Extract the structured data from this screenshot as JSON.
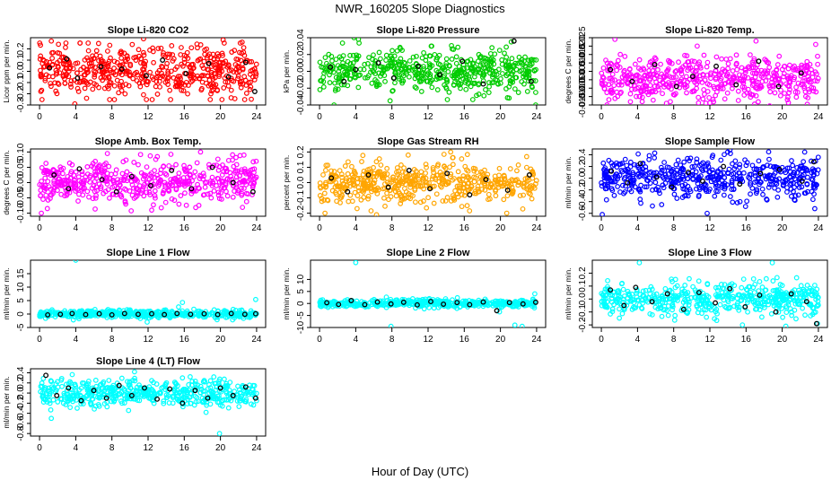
{
  "figure": {
    "title": "NWR_160205  Slope Diagnostics",
    "xlabel": "Hour of Day (UTC)"
  },
  "chart_data": [
    {
      "type": "scatter",
      "title": "Slope Li-820 CO2",
      "ylabel": "Licor ppm per min.",
      "color": "#ff0000",
      "xlim": [
        -1,
        25
      ],
      "ylim": [
        -0.3,
        0.3
      ],
      "xticks": [
        0,
        4,
        8,
        12,
        16,
        20,
        24
      ],
      "yticks": [
        -0.3,
        -0.2,
        -0.1,
        0.0,
        0.1,
        0.2
      ],
      "ytick_labels": [
        "-0.3",
        "-0.2",
        "-0.1",
        "0.0",
        "0.1",
        "0.2"
      ],
      "spread": 0.11,
      "outliers": [
        [
          1.3,
          0.27
        ],
        [
          3.9,
          -0.29
        ],
        [
          11.5,
          0.29
        ],
        [
          20.3,
          0.28
        ],
        [
          22.4,
          0.26
        ],
        [
          5.2,
          -0.24
        ]
      ],
      "black": [
        [
          1.1,
          0.03
        ],
        [
          3.0,
          0.11
        ],
        [
          4.2,
          -0.06
        ],
        [
          6.8,
          0.04
        ],
        [
          9.1,
          0.02
        ],
        [
          11.8,
          -0.04
        ],
        [
          13.6,
          0.1
        ],
        [
          16.2,
          -0.02
        ],
        [
          18.7,
          0.07
        ],
        [
          20.9,
          -0.05
        ],
        [
          22.8,
          0.08
        ],
        [
          23.8,
          -0.18
        ]
      ]
    },
    {
      "type": "scatter",
      "title": "Slope Li-820 Pressure",
      "ylabel": "kPa per min.",
      "color": "#00cc00",
      "xlim": [
        -1,
        25
      ],
      "ylim": [
        -0.04,
        0.04
      ],
      "xticks": [
        0,
        4,
        8,
        12,
        16,
        20,
        24
      ],
      "yticks": [
        -0.04,
        -0.02,
        0.0,
        0.02,
        0.04
      ],
      "ytick_labels": [
        "-0.04",
        "-0.02",
        "0.00",
        "0.02",
        "0.04"
      ],
      "spread": 0.012,
      "outliers": [
        [
          3.8,
          0.04
        ],
        [
          4.3,
          0.038
        ],
        [
          1.6,
          -0.04
        ],
        [
          7.8,
          -0.035
        ],
        [
          12.4,
          0.03
        ],
        [
          21.2,
          0.035
        ],
        [
          23.9,
          -0.04
        ]
      ],
      "black": [
        [
          1.2,
          0.005
        ],
        [
          2.7,
          -0.012
        ],
        [
          4.0,
          0.002
        ],
        [
          6.5,
          0.01
        ],
        [
          8.2,
          -0.008
        ],
        [
          10.9,
          0.006
        ],
        [
          13.3,
          -0.004
        ],
        [
          15.8,
          0.012
        ],
        [
          18.1,
          -0.015
        ],
        [
          21.5,
          0.036
        ],
        [
          23.4,
          -0.012
        ]
      ]
    },
    {
      "type": "scatter",
      "title": "Slope Li-820 Temp.",
      "ylabel": "degrees C per min.",
      "color": "#ff00ff",
      "xlim": [
        -1,
        25
      ],
      "ylim": [
        -0.015,
        0.025
      ],
      "xticks": [
        0,
        4,
        8,
        12,
        16,
        20,
        24
      ],
      "yticks": [
        -0.015,
        -0.005,
        0.005,
        0.015,
        0.025
      ],
      "ytick_labels": [
        "-0.015",
        "-0.005",
        "0.005",
        "0.015",
        "0.025"
      ],
      "tick_ylim": [
        -0.015,
        0.025
      ],
      "minor_ticks": [
        -0.01,
        0.0,
        0.01,
        0.02
      ],
      "minor_labels": [
        "-0.010",
        "0.000",
        "0.010",
        "0.020"
      ],
      "spread": 0.0065,
      "outliers": [
        [
          1.5,
          0.024
        ],
        [
          7.2,
          -0.014
        ],
        [
          10.6,
          0.02
        ],
        [
          17.1,
          0.023
        ],
        [
          23.7,
          0.021
        ]
      ],
      "black": [
        [
          1.0,
          0.006
        ],
        [
          3.4,
          -0.001
        ],
        [
          5.9,
          0.009
        ],
        [
          8.3,
          -0.004
        ],
        [
          10.1,
          0.002
        ],
        [
          12.7,
          0.008
        ],
        [
          14.9,
          -0.003
        ],
        [
          17.4,
          0.011
        ],
        [
          19.6,
          -0.004
        ],
        [
          22.1,
          0.004
        ]
      ]
    },
    {
      "type": "scatter",
      "title": "Slope Amb. Box Temp.",
      "ylabel": "degrees C per min.",
      "color": "#ff00ff",
      "xlim": [
        -1,
        25
      ],
      "ylim": [
        -0.11,
        0.11
      ],
      "xticks": [
        0,
        4,
        8,
        12,
        16,
        20,
        24
      ],
      "yticks": [
        -0.1,
        -0.05,
        0.0,
        0.05,
        0.1
      ],
      "ytick_labels": [
        "-0.10",
        "-0.05",
        "0.00",
        "0.05",
        "0.10"
      ],
      "spread": 0.035,
      "outliers": [
        [
          0.2,
          -0.1
        ],
        [
          7.5,
          0.095
        ],
        [
          17.8,
          0.1
        ],
        [
          12.4,
          -0.09
        ],
        [
          22.6,
          0.09
        ]
      ],
      "black": [
        [
          1.6,
          0.025
        ],
        [
          3.2,
          -0.02
        ],
        [
          4.4,
          0.045
        ],
        [
          6.9,
          0.01
        ],
        [
          8.5,
          -0.03
        ],
        [
          10.2,
          0.02
        ],
        [
          12.3,
          -0.01
        ],
        [
          14.6,
          0.04
        ],
        [
          16.8,
          -0.02
        ],
        [
          19.1,
          0.05
        ],
        [
          21.4,
          0.0
        ],
        [
          23.6,
          -0.03
        ]
      ]
    },
    {
      "type": "scatter",
      "title": "Slope Gas Stream RH",
      "ylabel": "percent per min.",
      "color": "#ffa500",
      "xlim": [
        -1,
        25
      ],
      "ylim": [
        -0.22,
        0.22
      ],
      "xticks": [
        0,
        4,
        8,
        12,
        16,
        20,
        24
      ],
      "yticks": [
        -0.2,
        -0.1,
        0.0,
        0.1,
        0.2
      ],
      "ytick_labels": [
        "-0.2",
        "-0.1",
        "0.0",
        "0.1",
        "0.2"
      ],
      "spread": 0.065,
      "outliers": [
        [
          0.6,
          -0.2
        ],
        [
          6.3,
          -0.21
        ],
        [
          9.8,
          0.18
        ],
        [
          14.5,
          0.2
        ],
        [
          20.7,
          -0.2
        ],
        [
          22.9,
          0.17
        ]
      ],
      "black": [
        [
          1.3,
          0.03
        ],
        [
          3.1,
          -0.06
        ],
        [
          5.4,
          0.05
        ],
        [
          7.6,
          -0.03
        ],
        [
          9.9,
          0.08
        ],
        [
          12.2,
          -0.04
        ],
        [
          14.1,
          0.06
        ],
        [
          16.6,
          -0.08
        ],
        [
          18.4,
          0.02
        ],
        [
          20.8,
          -0.05
        ],
        [
          23.2,
          0.05
        ]
      ]
    },
    {
      "type": "scatter",
      "title": "Slope Sample Flow",
      "ylabel": "ml/min per min.",
      "color": "#0000ff",
      "xlim": [
        -1,
        25
      ],
      "ylim": [
        -0.65,
        0.5
      ],
      "xticks": [
        0,
        4,
        8,
        12,
        16,
        20,
        24
      ],
      "yticks": [
        -0.6,
        -0.4,
        -0.2,
        0.0,
        0.2,
        0.4
      ],
      "ytick_labels": [
        "-0.6",
        "-0.4",
        "-0.2",
        "0.0",
        "0.2",
        "0.4"
      ],
      "spread": 0.17,
      "outliers": [
        [
          0.1,
          -0.62
        ],
        [
          5.9,
          0.43
        ],
        [
          11.7,
          -0.6
        ],
        [
          18.5,
          0.45
        ],
        [
          23.6,
          -0.52
        ]
      ],
      "black": [
        [
          1.1,
          0.12
        ],
        [
          2.9,
          -0.08
        ],
        [
          4.3,
          0.25
        ],
        [
          6.1,
          0.02
        ],
        [
          7.8,
          -0.15
        ],
        [
          9.6,
          0.1
        ],
        [
          11.2,
          -0.05
        ],
        [
          13.5,
          0.2
        ],
        [
          15.3,
          -0.1
        ],
        [
          17.6,
          0.08
        ],
        [
          19.7,
          0.15
        ],
        [
          22.2,
          -0.05
        ],
        [
          23.5,
          0.28
        ]
      ]
    },
    {
      "type": "scatter",
      "title": "Slope Line 1 Flow",
      "ylabel": "ml/min per min.",
      "color": "#00ffff",
      "xlim": [
        -1,
        25
      ],
      "ylim": [
        -5,
        20
      ],
      "xticks": [
        0,
        4,
        8,
        12,
        16,
        20,
        24
      ],
      "yticks": [
        -5,
        0,
        5,
        10,
        15
      ],
      "ytick_labels": [
        "-5",
        "0",
        "5",
        "10",
        "15"
      ],
      "spread": 0.7,
      "outliers": [
        [
          4.0,
          20
        ],
        [
          15.8,
          4.3
        ],
        [
          23.9,
          5.4
        ],
        [
          11.9,
          -3
        ]
      ],
      "black": [
        [
          0.9,
          -0.3
        ],
        [
          2.3,
          -0.1
        ],
        [
          3.6,
          0.2
        ],
        [
          5.1,
          -0.2
        ],
        [
          6.6,
          0.1
        ],
        [
          8.0,
          -0.3
        ],
        [
          9.4,
          0.2
        ],
        [
          10.9,
          -0.1
        ],
        [
          12.4,
          0.1
        ],
        [
          13.8,
          -0.2
        ],
        [
          15.2,
          0.2
        ],
        [
          16.7,
          -0.1
        ],
        [
          18.2,
          0.1
        ],
        [
          19.7,
          -0.2
        ],
        [
          21.2,
          0.2
        ],
        [
          22.7,
          -0.1
        ],
        [
          23.9,
          0.1
        ]
      ]
    },
    {
      "type": "scatter",
      "title": "Slope Line 2 Flow",
      "ylabel": "ml/min per min.",
      "color": "#00ffff",
      "xlim": [
        -1,
        25
      ],
      "ylim": [
        -10,
        18
      ],
      "xticks": [
        0,
        4,
        8,
        12,
        16,
        20,
        24
      ],
      "yticks": [
        -10,
        -5,
        0,
        5,
        10
      ],
      "ytick_labels": [
        "-10",
        "-5",
        "0",
        "5",
        "10"
      ],
      "spread": 0.8,
      "outliers": [
        [
          4.0,
          17
        ],
        [
          7.9,
          -9.5
        ],
        [
          19.9,
          -3.5
        ],
        [
          21.6,
          -9
        ],
        [
          22.4,
          -9.5
        ],
        [
          23.8,
          4
        ]
      ],
      "black": [
        [
          0.8,
          0.3
        ],
        [
          2.1,
          -0.4
        ],
        [
          3.5,
          1.2
        ],
        [
          5.0,
          -0.5
        ],
        [
          6.4,
          0.6
        ],
        [
          7.9,
          -0.2
        ],
        [
          9.3,
          0.5
        ],
        [
          10.8,
          -0.6
        ],
        [
          12.3,
          0.8
        ],
        [
          13.7,
          -0.3
        ],
        [
          15.2,
          0.4
        ],
        [
          16.6,
          -0.5
        ],
        [
          18.1,
          0.6
        ],
        [
          19.6,
          -3.0
        ],
        [
          21.0,
          0.4
        ],
        [
          22.5,
          -0.2
        ],
        [
          23.9,
          0.5
        ]
      ]
    },
    {
      "type": "scatter",
      "title": "Slope Line 3 Flow",
      "ylabel": "ml/min per min.",
      "color": "#00ffff",
      "xlim": [
        -1,
        25
      ],
      "ylim": [
        -0.22,
        0.3
      ],
      "xticks": [
        0,
        4,
        8,
        12,
        16,
        20,
        24
      ],
      "yticks": [
        -0.2,
        -0.1,
        0.0,
        0.1,
        0.2
      ],
      "ytick_labels": [
        "-0.2",
        "-0.1",
        "0.0",
        "0.1",
        "0.2"
      ],
      "spread": 0.06,
      "outliers": [
        [
          4.2,
          0.28
        ],
        [
          15.6,
          -0.2
        ],
        [
          18.9,
          0.28
        ],
        [
          20.4,
          -0.21
        ],
        [
          23.9,
          -0.19
        ]
      ],
      "black": [
        [
          1.0,
          0.07
        ],
        [
          2.5,
          -0.05
        ],
        [
          3.8,
          0.09
        ],
        [
          5.6,
          -0.02
        ],
        [
          7.3,
          0.04
        ],
        [
          9.1,
          -0.08
        ],
        [
          10.8,
          0.05
        ],
        [
          12.6,
          -0.03
        ],
        [
          14.2,
          0.08
        ],
        [
          15.9,
          -0.06
        ],
        [
          17.5,
          0.03
        ],
        [
          19.3,
          -0.1
        ],
        [
          21.0,
          0.04
        ],
        [
          22.7,
          -0.02
        ],
        [
          23.8,
          -0.19
        ]
      ]
    },
    {
      "type": "scatter",
      "title": "Slope Line 4 (LT) Flow",
      "ylabel": "ml/min per min.",
      "color": "#00ffff",
      "xlim": [
        -1,
        25
      ],
      "ylim": [
        -0.85,
        0.48
      ],
      "xticks": [
        0,
        4,
        8,
        12,
        16,
        20,
        24
      ],
      "yticks": [
        -0.8,
        -0.6,
        -0.4,
        -0.2,
        0.0,
        0.2,
        0.4
      ],
      "ytick_labels": [
        "-0.8",
        "-0.6",
        "-0.4",
        "-0.2",
        "0.0",
        "0.2",
        "0.4"
      ],
      "spread": 0.13,
      "outliers": [
        [
          1.3,
          -0.5
        ],
        [
          10.5,
          0.42
        ],
        [
          19.9,
          -0.8
        ],
        [
          15.8,
          0.3
        ]
      ],
      "black": [
        [
          0.7,
          0.35
        ],
        [
          1.9,
          -0.05
        ],
        [
          3.2,
          0.1
        ],
        [
          4.6,
          -0.15
        ],
        [
          6.0,
          0.05
        ],
        [
          7.4,
          -0.1
        ],
        [
          8.8,
          0.15
        ],
        [
          10.2,
          -0.05
        ],
        [
          11.6,
          0.1
        ],
        [
          13.0,
          -0.12
        ],
        [
          14.4,
          0.08
        ],
        [
          15.8,
          -0.2
        ],
        [
          17.2,
          0.05
        ],
        [
          18.6,
          -0.1
        ],
        [
          20.0,
          0.1
        ],
        [
          21.4,
          -0.05
        ],
        [
          22.8,
          0.12
        ],
        [
          23.9,
          -0.1
        ]
      ]
    }
  ]
}
